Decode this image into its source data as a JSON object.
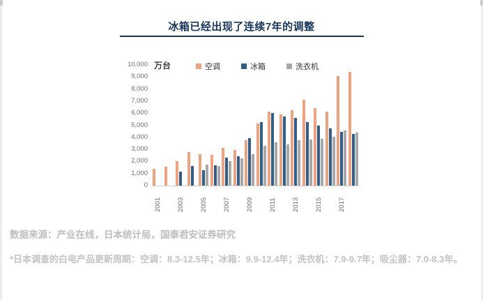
{
  "page": {
    "title": "冰箱已经出现了连续7年的调整",
    "source_note": "数据来源：产业在线，日本统计局，国泰君安证券研究",
    "footnote": "*日本调查的白电产品更新周期：空调：8.3-12.5年；冰箱：9.9-12.4年；洗衣机：7.9-9.7年；吸尘器：7.0-8.3年。"
  },
  "colors": {
    "title_navy": "#17365d",
    "ac_orange": "#f1a17c",
    "fridge_blue": "#2f5d8c",
    "washer_gray": "#a8a8a8",
    "axis_text": "#6e6e6e",
    "footer_gray": "#bdbdbd"
  },
  "chart_data": {
    "type": "bar",
    "title": "冰箱已经出现了连续7年的调整",
    "unit_label": "万台",
    "categories": [
      "2001",
      "2002",
      "2003",
      "2004",
      "2005",
      "2006",
      "2007",
      "2008",
      "2009",
      "2010",
      "2011",
      "2012",
      "2013",
      "2014",
      "2015",
      "2016",
      "2017",
      "2018"
    ],
    "x_tick_labels": [
      "2001",
      "2003",
      "2005",
      "2007",
      "2009",
      "2011",
      "2013",
      "2015",
      "2017"
    ],
    "y_tick_labels": [
      "0",
      "1,000",
      "2,000",
      "3,000",
      "4,000",
      "5,000",
      "6,000",
      "7,000",
      "8,000",
      "9,000",
      "10,000"
    ],
    "ylim": [
      0,
      10000
    ],
    "ytick_step": 1000,
    "grid": false,
    "legend_position": "top",
    "series": [
      {
        "name": "空调",
        "color": "#f1a17c",
        "values": [
          1400,
          1550,
          2050,
          2800,
          2600,
          2550,
          3100,
          2950,
          3750,
          5150,
          6100,
          5900,
          6250,
          7100,
          6400,
          6100,
          9050,
          9400
        ]
      },
      {
        "name": "冰箱",
        "color": "#2f5d8c",
        "values": [
          null,
          null,
          1150,
          1600,
          1300,
          1700,
          2300,
          2400,
          3950,
          5250,
          6000,
          5750,
          5600,
          5250,
          5000,
          4750,
          4450,
          4300
        ]
      },
      {
        "name": "洗衣机",
        "color": "#a8a8a8",
        "values": [
          null,
          null,
          null,
          null,
          1750,
          1600,
          2000,
          2250,
          2600,
          3300,
          3600,
          3400,
          3750,
          3800,
          3900,
          4050,
          4550,
          4400
        ]
      }
    ]
  }
}
